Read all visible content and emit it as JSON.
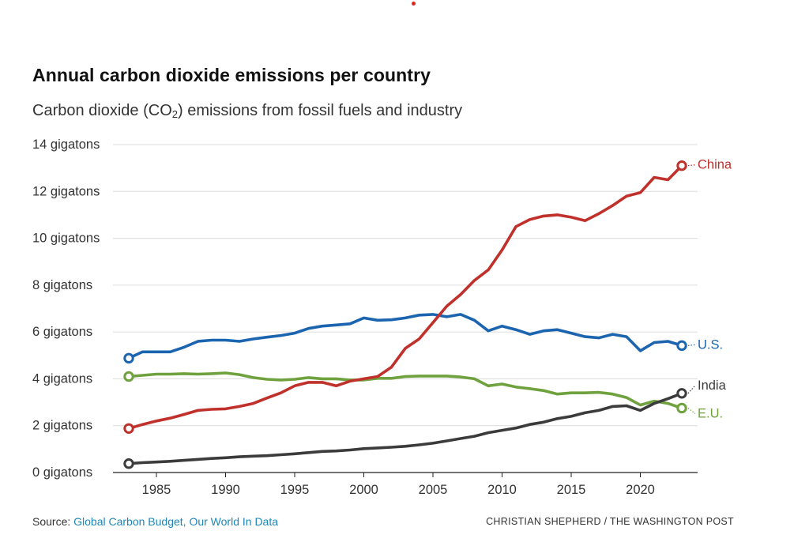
{
  "chart_data": {
    "type": "line",
    "title": "Annual carbon dioxide emissions per country",
    "subtitle": {
      "before": "Carbon dioxide (CO",
      "sub": "2",
      "after": ") emissions from fossil fuels and industry"
    },
    "xlabel": "",
    "ylabel": "",
    "xlim": [
      1983,
      2023
    ],
    "ylim": [
      0,
      14
    ],
    "y_unit_suffix": " gigatons",
    "y_ticks": [
      0,
      2,
      4,
      6,
      8,
      10,
      12,
      14
    ],
    "x_ticks": [
      1985,
      1990,
      1995,
      2000,
      2005,
      2010,
      2015,
      2020
    ],
    "grid": "horizontal",
    "x": [
      1983,
      1984,
      1985,
      1986,
      1987,
      1988,
      1989,
      1990,
      1991,
      1992,
      1993,
      1994,
      1995,
      1996,
      1997,
      1998,
      1999,
      2000,
      2001,
      2002,
      2003,
      2004,
      2005,
      2006,
      2007,
      2008,
      2009,
      2010,
      2011,
      2012,
      2013,
      2014,
      2015,
      2016,
      2017,
      2018,
      2019,
      2020,
      2021,
      2022,
      2023
    ],
    "series": [
      {
        "name": "China",
        "label": "China",
        "color": "#c0312b",
        "values": [
          1.88,
          2.05,
          2.2,
          2.32,
          2.48,
          2.65,
          2.7,
          2.72,
          2.82,
          2.95,
          3.18,
          3.4,
          3.7,
          3.85,
          3.85,
          3.7,
          3.9,
          4.0,
          4.1,
          4.5,
          5.3,
          5.7,
          6.4,
          7.1,
          7.6,
          8.2,
          8.65,
          9.5,
          10.5,
          10.8,
          10.95,
          11.0,
          10.9,
          10.75,
          11.05,
          11.4,
          11.8,
          11.95,
          12.6,
          12.5,
          13.1
        ]
      },
      {
        "name": "U.S.",
        "label": "U.S.",
        "color": "#1b64b0",
        "values": [
          4.88,
          5.15,
          5.15,
          5.15,
          5.35,
          5.6,
          5.65,
          5.65,
          5.6,
          5.7,
          5.78,
          5.85,
          5.95,
          6.15,
          6.25,
          6.3,
          6.35,
          6.6,
          6.5,
          6.52,
          6.6,
          6.72,
          6.75,
          6.65,
          6.75,
          6.5,
          6.05,
          6.25,
          6.1,
          5.9,
          6.05,
          6.1,
          5.95,
          5.8,
          5.75,
          5.9,
          5.8,
          5.2,
          5.55,
          5.6,
          5.42
        ]
      },
      {
        "name": "India",
        "label": "India",
        "color": "#3b3b3b",
        "values": [
          0.38,
          0.42,
          0.45,
          0.48,
          0.52,
          0.56,
          0.6,
          0.63,
          0.67,
          0.7,
          0.72,
          0.76,
          0.8,
          0.85,
          0.9,
          0.92,
          0.96,
          1.02,
          1.05,
          1.08,
          1.12,
          1.18,
          1.25,
          1.35,
          1.45,
          1.55,
          1.7,
          1.8,
          1.9,
          2.05,
          2.15,
          2.3,
          2.4,
          2.55,
          2.65,
          2.82,
          2.85,
          2.65,
          2.95,
          3.15,
          3.38
        ]
      },
      {
        "name": "E.U.",
        "label": "E.U.",
        "color": "#6fa23e",
        "values": [
          4.1,
          4.15,
          4.2,
          4.2,
          4.22,
          4.2,
          4.22,
          4.25,
          4.18,
          4.05,
          3.98,
          3.95,
          3.98,
          4.05,
          4.0,
          4.0,
          3.95,
          3.95,
          4.02,
          4.02,
          4.1,
          4.12,
          4.12,
          4.12,
          4.08,
          4.0,
          3.7,
          3.78,
          3.65,
          3.58,
          3.5,
          3.35,
          3.4,
          3.4,
          3.42,
          3.35,
          3.2,
          2.88,
          3.05,
          2.95,
          2.75
        ]
      }
    ]
  },
  "source": {
    "label": "Source: ",
    "link_text": "Global Carbon Budget, Our World In Data"
  },
  "credit": "CHRISTIAN SHEPHERD / THE WASHINGTON POST",
  "accent_dot_color": "#e0261b"
}
